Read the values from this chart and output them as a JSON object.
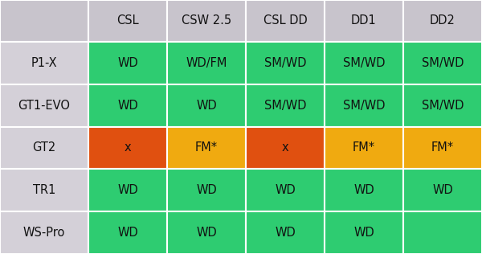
{
  "col_headers": [
    "",
    "CSL",
    "CSW 2.5",
    "CSL DD",
    "DD1",
    "DD2"
  ],
  "rows": [
    {
      "label": "P1-X",
      "cells": [
        "WD",
        "WD/FM",
        "SM/WD",
        "SM/WD",
        "SM/WD"
      ]
    },
    {
      "label": "GT1-EVO",
      "cells": [
        "WD",
        "WD",
        "SM/WD",
        "SM/WD",
        "SM/WD"
      ]
    },
    {
      "label": "GT2",
      "cells": [
        "x",
        "FM*",
        "x",
        "FM*",
        "FM*"
      ]
    },
    {
      "label": "TR1",
      "cells": [
        "WD",
        "WD",
        "WD",
        "WD",
        "WD"
      ]
    },
    {
      "label": "WS-Pro",
      "cells": [
        "WD",
        "WD",
        "WD",
        "WD",
        ""
      ]
    }
  ],
  "cell_colors": [
    [
      "#2ecc71",
      "#2ecc71",
      "#2ecc71",
      "#2ecc71",
      "#2ecc71"
    ],
    [
      "#2ecc71",
      "#2ecc71",
      "#2ecc71",
      "#2ecc71",
      "#2ecc71"
    ],
    [
      "#e05010",
      "#f0aa10",
      "#e05010",
      "#f0aa10",
      "#f0aa10"
    ],
    [
      "#2ecc71",
      "#2ecc71",
      "#2ecc71",
      "#2ecc71",
      "#2ecc71"
    ],
    [
      "#2ecc71",
      "#2ecc71",
      "#2ecc71",
      "#2ecc71",
      "#2ecc71"
    ]
  ],
  "header_bg": "#c8c4cc",
  "row_label_bg": "#d4d0d8",
  "grid_color": "#ffffff",
  "text_color": "#111111",
  "figsize": [
    6.0,
    3.16
  ],
  "dpi": 100,
  "font_size": 10.5
}
